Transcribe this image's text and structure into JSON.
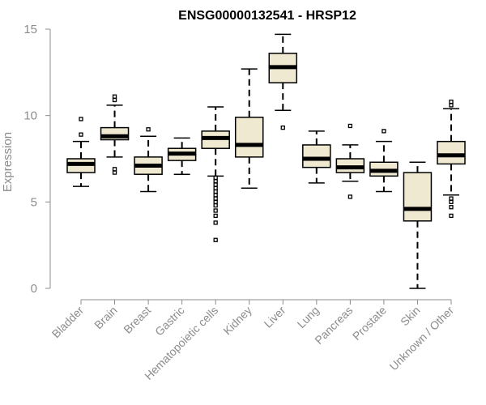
{
  "chart_data": {
    "type": "box",
    "title": "ENSG00000132541 - HRSP12",
    "ylabel": "Expression",
    "xlabel": "",
    "ylim": [
      0,
      15
    ],
    "yticks": [
      0,
      5,
      10,
      15
    ],
    "box_fill": "#efe9d2",
    "box_stroke": "#000000",
    "axis_color": "#8c8c8c",
    "categories": [
      "Bladder",
      "Brain",
      "Breast",
      "Gastric",
      "Hematopoietic cells",
      "Kidney",
      "Liver",
      "Lung",
      "Pancreas",
      "Prostate",
      "Skin",
      "Unknown / Other"
    ],
    "boxes": [
      {
        "category": "Bladder",
        "whisker_low": 5.9,
        "q1": 6.7,
        "median": 7.2,
        "q3": 7.5,
        "whisker_high": 8.5,
        "outliers": [
          8.9,
          9.8
        ]
      },
      {
        "category": "Brain",
        "whisker_low": 7.6,
        "q1": 8.6,
        "median": 8.8,
        "q3": 9.3,
        "whisker_high": 10.6,
        "outliers": [
          6.7,
          6.9,
          10.9,
          11.1
        ]
      },
      {
        "category": "Breast",
        "whisker_low": 5.6,
        "q1": 6.6,
        "median": 7.1,
        "q3": 7.6,
        "whisker_high": 8.8,
        "outliers": [
          9.2
        ]
      },
      {
        "category": "Gastric",
        "whisker_low": 6.6,
        "q1": 7.4,
        "median": 7.8,
        "q3": 8.1,
        "whisker_high": 8.7,
        "outliers": []
      },
      {
        "category": "Hematopoietic cells",
        "whisker_low": 6.5,
        "q1": 8.1,
        "median": 8.7,
        "q3": 9.1,
        "whisker_high": 10.5,
        "outliers": [
          2.8,
          3.8,
          4.2,
          4.5,
          4.8,
          5.0,
          5.2,
          5.4,
          5.6,
          5.8,
          6.0,
          6.2,
          6.4
        ]
      },
      {
        "category": "Kidney",
        "whisker_low": 5.8,
        "q1": 7.6,
        "median": 8.3,
        "q3": 9.9,
        "whisker_high": 12.7,
        "outliers": []
      },
      {
        "category": "Liver",
        "whisker_low": 10.3,
        "q1": 11.9,
        "median": 12.8,
        "q3": 13.6,
        "whisker_high": 14.7,
        "outliers": [
          9.3
        ]
      },
      {
        "category": "Lung",
        "whisker_low": 6.1,
        "q1": 7.0,
        "median": 7.5,
        "q3": 8.3,
        "whisker_high": 9.1,
        "outliers": []
      },
      {
        "category": "Pancreas",
        "whisker_low": 6.2,
        "q1": 6.7,
        "median": 7.0,
        "q3": 7.5,
        "whisker_high": 8.3,
        "outliers": [
          5.3,
          9.4
        ]
      },
      {
        "category": "Prostate",
        "whisker_low": 5.6,
        "q1": 6.5,
        "median": 6.8,
        "q3": 7.3,
        "whisker_high": 8.5,
        "outliers": [
          9.1
        ]
      },
      {
        "category": "Skin",
        "whisker_low": 0.0,
        "q1": 3.9,
        "median": 4.6,
        "q3": 6.7,
        "whisker_high": 7.3,
        "outliers": []
      },
      {
        "category": "Unknown / Other",
        "whisker_low": 5.4,
        "q1": 7.2,
        "median": 7.7,
        "q3": 8.5,
        "whisker_high": 10.4,
        "outliers": [
          4.2,
          4.7,
          5.0,
          5.2,
          10.6,
          10.8
        ]
      }
    ]
  }
}
